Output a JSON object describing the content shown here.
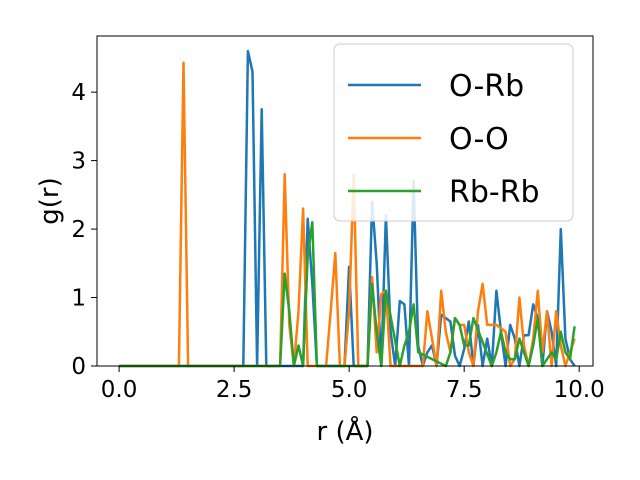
{
  "chart_data": {
    "type": "line",
    "xlabel": "r (Å)",
    "ylabel": "g(r)",
    "xlim": [
      -0.48,
      10.3
    ],
    "ylim": [
      0,
      4.82
    ],
    "xticks": [
      0.0,
      2.5,
      5.0,
      7.5,
      10.0
    ],
    "xtick_labels": [
      "0.0",
      "2.5",
      "5.0",
      "7.5",
      "10.0"
    ],
    "yticks": [
      0,
      1,
      2,
      3,
      4
    ],
    "ytick_labels": [
      "0",
      "1",
      "2",
      "3",
      "4"
    ],
    "grid": false,
    "legend_position": "top-right",
    "series": [
      {
        "name": "O-Rb",
        "color": "#1f77b4",
        "x": [
          0,
          2.7,
          2.8,
          2.9,
          3.0,
          3.1,
          3.2,
          4.0,
          4.1,
          4.2,
          4.3,
          4.9,
          5.0,
          5.1,
          5.4,
          5.5,
          5.6,
          5.7,
          5.8,
          5.9,
          6.0,
          6.1,
          6.2,
          6.3,
          6.4,
          6.5,
          6.6,
          6.7,
          6.8,
          6.9,
          7.0,
          7.1,
          7.2,
          7.3,
          7.4,
          7.5,
          7.6,
          7.7,
          7.8,
          7.9,
          8.0,
          8.1,
          8.2,
          8.3,
          8.4,
          8.5,
          8.6,
          8.7,
          8.8,
          8.9,
          9.0,
          9.1,
          9.2,
          9.3,
          9.4,
          9.5,
          9.6,
          9.7,
          9.8,
          9.9
        ],
        "y": [
          0,
          0,
          4.6,
          4.3,
          0,
          3.75,
          0,
          0,
          2.15,
          1.2,
          0,
          0,
          1.45,
          0,
          0,
          2.4,
          1.5,
          0,
          2.2,
          0.5,
          0,
          0.95,
          0.9,
          0,
          2.7,
          0.3,
          0,
          0.2,
          0.3,
          0,
          0.75,
          0.7,
          0.65,
          0.15,
          0,
          0.25,
          0.65,
          0,
          0.6,
          0,
          0.4,
          0,
          1.1,
          0.5,
          0,
          0.6,
          0.4,
          0,
          0.45,
          0.45,
          0.9,
          0.7,
          0,
          0.8,
          0.5,
          0,
          2.0,
          0.4,
          0.1,
          0
        ]
      },
      {
        "name": "O-O",
        "color": "#ff7f0e",
        "x": [
          0,
          1.3,
          1.4,
          1.5,
          3.5,
          3.6,
          3.7,
          3.8,
          3.9,
          4.0,
          4.1,
          4.2,
          4.5,
          4.6,
          4.7,
          4.8,
          4.9,
          5.0,
          5.1,
          5.2,
          5.4,
          5.5,
          5.6,
          5.7,
          5.8,
          5.9,
          6.0,
          6.6,
          6.7,
          6.8,
          6.9,
          7.0,
          7.1,
          7.2,
          7.3,
          7.4,
          7.5,
          7.6,
          7.7,
          7.8,
          7.9,
          8.0,
          8.1,
          8.2,
          8.3,
          8.4,
          8.5,
          8.6,
          8.7,
          8.8,
          8.9,
          9.0,
          9.1,
          9.2,
          9.3,
          9.4,
          9.5,
          9.6,
          9.7,
          9.8,
          9.9
        ],
        "y": [
          0,
          0,
          4.43,
          0,
          0,
          2.8,
          0.6,
          0,
          0.8,
          2.3,
          0,
          0,
          0,
          0.8,
          1.65,
          0,
          0,
          0.8,
          2.8,
          0,
          0,
          1.3,
          0.2,
          1.05,
          1.1,
          0,
          0,
          0,
          0.8,
          0.4,
          0,
          1.1,
          0.5,
          0.2,
          0.7,
          0.6,
          0.6,
          0.2,
          0,
          0.8,
          1.2,
          0.6,
          0.6,
          0.6,
          0.55,
          0.5,
          0,
          0.1,
          1.0,
          0.3,
          0,
          0.4,
          1.1,
          0.2,
          0.8,
          0,
          0.8,
          0.3,
          0,
          0.2,
          0.4
        ]
      },
      {
        "name": "Rb-Rb",
        "color": "#2ca02c",
        "x": [
          0,
          3.5,
          3.6,
          3.7,
          3.8,
          3.9,
          4.0,
          4.1,
          4.2,
          4.3,
          5.4,
          5.5,
          5.6,
          5.7,
          5.8,
          6.1,
          6.2,
          6.3,
          6.4,
          6.5,
          7.1,
          7.2,
          7.3,
          7.4,
          7.5,
          7.6,
          7.7,
          8.1,
          8.2,
          8.3,
          8.4,
          8.5,
          8.6,
          8.7,
          8.8,
          8.9,
          9.0,
          9.1,
          9.2,
          9.3,
          9.4,
          9.5,
          9.6,
          9.7,
          9.8,
          9.9
        ],
        "y": [
          0,
          0,
          1.35,
          0.8,
          0,
          0.3,
          0,
          1.6,
          2.1,
          0,
          0,
          1.2,
          0.5,
          0,
          1.1,
          0,
          0.3,
          0.5,
          0.9,
          0.2,
          0,
          0.2,
          0.7,
          0.6,
          0.3,
          0.3,
          0.7,
          0,
          0.2,
          0.5,
          0.2,
          0.1,
          0.1,
          0.4,
          0.2,
          0,
          0.3,
          0.7,
          0,
          0.1,
          0.2,
          0.1,
          0.5,
          0.2,
          0.1,
          0.58
        ]
      }
    ]
  }
}
